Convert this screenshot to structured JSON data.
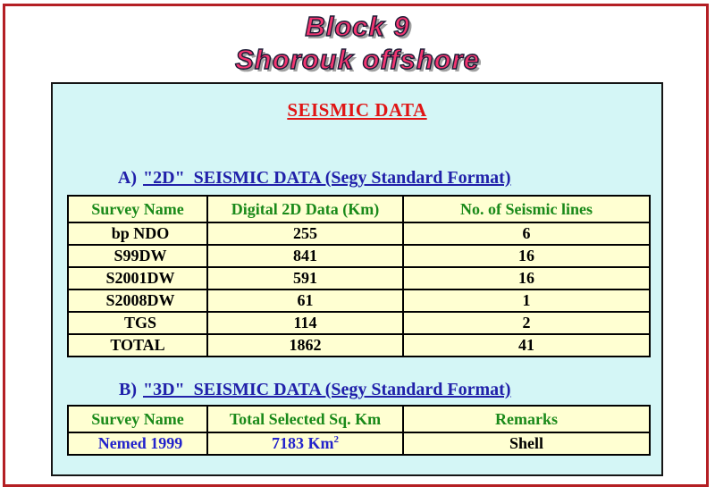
{
  "title": {
    "line1": "Block 9",
    "line2": "Shorouk offshore"
  },
  "panel": {
    "heading": "SEISMIC DATA",
    "section_a_prefix": "A)",
    "section_a_label": "\"2D\"  SEISMIC DATA (Segy Standard Format)",
    "section_b_prefix": "B)",
    "section_b_label": "\"3D\"  SEISMIC DATA (Segy Standard Format)"
  },
  "table_2d": {
    "headers": [
      "Survey Name",
      "Digital 2D Data (Km)",
      "No. of  Seismic lines"
    ],
    "rows": [
      [
        "bp NDO",
        "255",
        "6"
      ],
      [
        "S99DW",
        "841",
        "16"
      ],
      [
        "S2001DW",
        "591",
        "16"
      ],
      [
        "S2008DW",
        "61",
        "1"
      ],
      [
        "TGS",
        "114",
        "2"
      ]
    ],
    "total_row": [
      "TOTAL",
      "1862",
      "41"
    ]
  },
  "table_3d": {
    "headers": [
      "Survey Name",
      "Total Selected Sq. Km",
      "Remarks"
    ],
    "row": {
      "name": "Nemed 1999",
      "area_value": "7183 Km",
      "area_sup": "2",
      "remarks": "Shell"
    }
  },
  "colors": {
    "frame_red": "#b41f24",
    "title_pink": "#f23570",
    "heading_red": "#e01515",
    "heading_blue": "#2121aa",
    "table_green": "#1a8a1a",
    "data_blue": "#2323cc",
    "panel_cyan": "#d4f6f6",
    "table_yellow": "#ffffd2"
  }
}
